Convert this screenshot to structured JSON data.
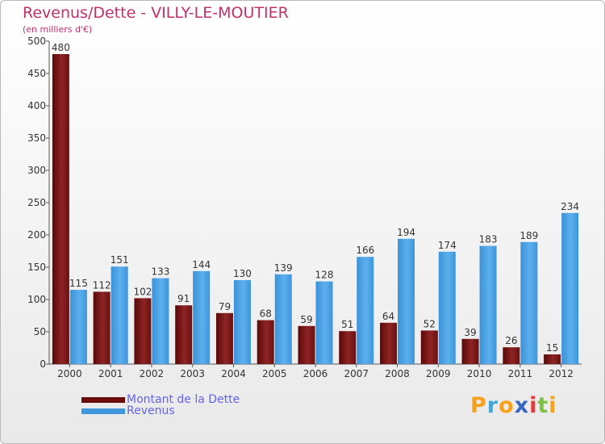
{
  "title": "Revenus/Dette - VILLY-LE-MOUTIER",
  "subtitle": "(en milliers d'€)",
  "colors": {
    "debt": "#7a1212",
    "revenue": "#3f98dc",
    "title": "#c0306a",
    "legend_text": "#6464e6"
  },
  "logo": {
    "letters": [
      "P",
      "r",
      "o",
      "x",
      "i",
      "t",
      "i"
    ],
    "colors": [
      "#f7a11b",
      "#46a8d8",
      "#f7a11b",
      "#3466c2",
      "#e83a3a",
      "#7cc142",
      "#f7a11b"
    ]
  },
  "chart_data": {
    "type": "bar",
    "title": "Revenus/Dette - VILLY-LE-MOUTIER",
    "ylabel": "(en milliers d'€)",
    "categories": [
      "2000",
      "2001",
      "2002",
      "2003",
      "2004",
      "2005",
      "2006",
      "2007",
      "2008",
      "2009",
      "2010",
      "2011",
      "2012"
    ],
    "series": [
      {
        "name": "Montant de la Dette",
        "values": [
          480,
          112,
          102,
          91,
          79,
          68,
          59,
          51,
          64,
          52,
          39,
          26,
          15
        ]
      },
      {
        "name": "Revenus",
        "values": [
          115,
          151,
          133,
          144,
          130,
          139,
          128,
          166,
          194,
          174,
          183,
          189,
          234
        ]
      }
    ],
    "ylim": [
      0,
      500
    ],
    "yticks": [
      "0",
      "50",
      "100",
      "150",
      "200",
      "250",
      "300",
      "350",
      "400",
      "450",
      "500"
    ],
    "grid": false,
    "legend_position": "bottom-left"
  }
}
